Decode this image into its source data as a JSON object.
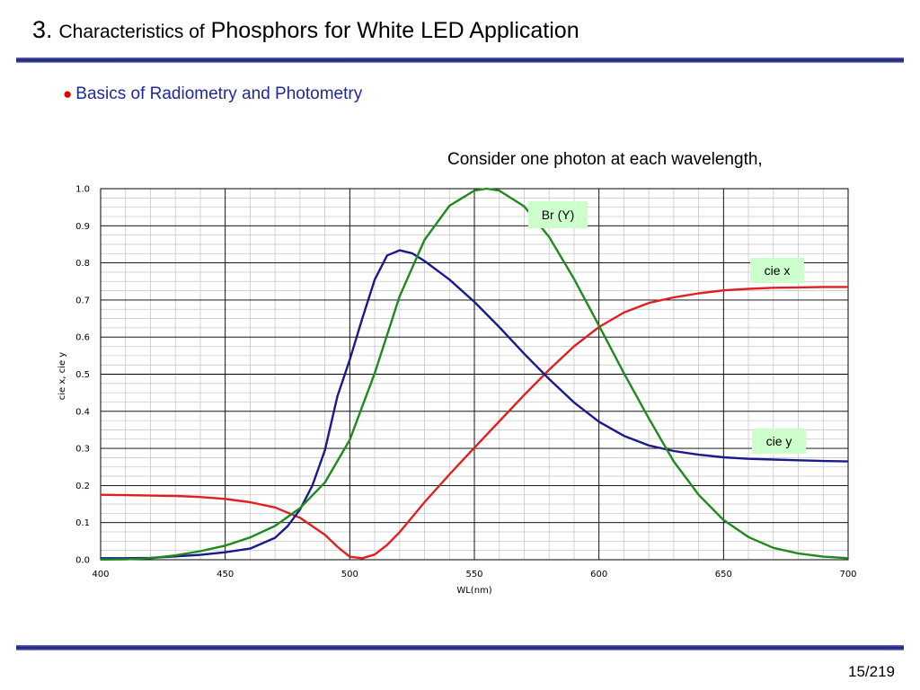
{
  "slide": {
    "title_num": "3.",
    "title_small": "Characteristics of",
    "title_rest": "Phosphors for White LED Application",
    "bullet": "Basics of Radiometry and Photometry",
    "caption": "Consider one photon at each wavelength,",
    "page": "15/219"
  },
  "chart_data": {
    "type": "line",
    "title": "",
    "xlabel": "WL(nm)",
    "ylabel": "cie x, cie y",
    "xlim": [
      400,
      700
    ],
    "ylim": [
      0.0,
      1.0
    ],
    "xticks": [
      "400",
      "450",
      "500",
      "550",
      "600",
      "650",
      "700"
    ],
    "yticks": [
      "0.0",
      "0.1",
      "0.2",
      "0.3",
      "0.4",
      "0.5",
      "0.6",
      "0.7",
      "0.8",
      "0.9",
      "1.0"
    ],
    "grid": true,
    "series": [
      {
        "name": "cie x",
        "color": "#e02020",
        "x": [
          400,
          410,
          420,
          430,
          440,
          450,
          460,
          470,
          480,
          490,
          495,
          500,
          505,
          510,
          515,
          520,
          530,
          540,
          550,
          560,
          570,
          580,
          590,
          600,
          610,
          620,
          630,
          640,
          650,
          660,
          670,
          680,
          690,
          700
        ],
        "y": [
          0.175,
          0.174,
          0.173,
          0.172,
          0.169,
          0.164,
          0.155,
          0.141,
          0.113,
          0.067,
          0.035,
          0.008,
          0.004,
          0.014,
          0.04,
          0.074,
          0.155,
          0.23,
          0.302,
          0.373,
          0.444,
          0.512,
          0.575,
          0.627,
          0.666,
          0.692,
          0.707,
          0.718,
          0.726,
          0.73,
          0.733,
          0.734,
          0.735,
          0.735
        ]
      },
      {
        "name": "cie y",
        "color": "#1a1a8c",
        "x": [
          400,
          410,
          420,
          430,
          440,
          450,
          460,
          470,
          475,
          480,
          485,
          490,
          495,
          500,
          505,
          510,
          515,
          520,
          525,
          530,
          540,
          550,
          560,
          570,
          580,
          590,
          600,
          610,
          620,
          630,
          640,
          650,
          660,
          670,
          680,
          690,
          700
        ],
        "y": [
          0.004,
          0.004,
          0.005,
          0.009,
          0.013,
          0.02,
          0.03,
          0.059,
          0.09,
          0.135,
          0.2,
          0.295,
          0.44,
          0.539,
          0.65,
          0.755,
          0.82,
          0.834,
          0.826,
          0.805,
          0.755,
          0.695,
          0.627,
          0.555,
          0.487,
          0.424,
          0.372,
          0.334,
          0.308,
          0.293,
          0.283,
          0.276,
          0.272,
          0.27,
          0.268,
          0.266,
          0.265
        ]
      },
      {
        "name": "Br (Y)",
        "color": "#1e8a1e",
        "x": [
          400,
          410,
          420,
          430,
          440,
          450,
          460,
          470,
          480,
          490,
          500,
          510,
          520,
          530,
          540,
          550,
          555,
          560,
          570,
          580,
          590,
          600,
          610,
          620,
          630,
          640,
          650,
          660,
          670,
          680,
          690,
          700
        ],
        "y": [
          0.0004,
          0.0012,
          0.004,
          0.0116,
          0.023,
          0.038,
          0.06,
          0.091,
          0.139,
          0.208,
          0.323,
          0.503,
          0.71,
          0.862,
          0.954,
          0.995,
          1.0,
          0.995,
          0.952,
          0.87,
          0.757,
          0.631,
          0.503,
          0.381,
          0.265,
          0.175,
          0.107,
          0.061,
          0.032,
          0.017,
          0.0082,
          0.0041
        ]
      }
    ]
  }
}
